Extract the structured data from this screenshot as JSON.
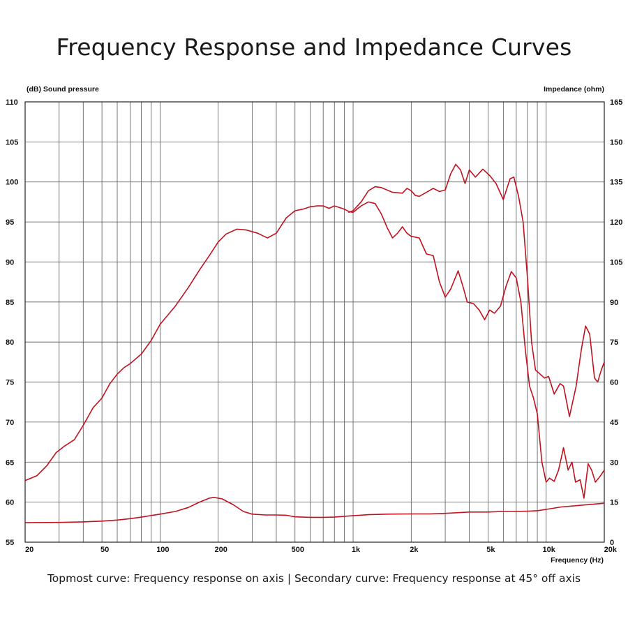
{
  "title": "Frequency Response and Impedance Curves",
  "caption": "Topmost curve: Frequency response on axis | Secondary curve: Frequency response at 45° off axis",
  "chart_data": {
    "type": "line",
    "x_scale": "log",
    "xlim": [
      20,
      20000
    ],
    "ylim": [
      55,
      110
    ],
    "y2lim": [
      0,
      165
    ],
    "grid": true,
    "left_axis_label": "(dB)  Sound pressure",
    "right_axis_label": "Impedance  (ohm)",
    "x_axis_label": "Frequency  (Hz)",
    "x_tick_labels": [
      {
        "v": 20,
        "t": "20"
      },
      {
        "v": 50,
        "t": "50"
      },
      {
        "v": 100,
        "t": "100"
      },
      {
        "v": 200,
        "t": "200"
      },
      {
        "v": 500,
        "t": "500"
      },
      {
        "v": 1000,
        "t": "1k"
      },
      {
        "v": 2000,
        "t": "2k"
      },
      {
        "v": 5000,
        "t": "5k"
      },
      {
        "v": 10000,
        "t": "10k"
      },
      {
        "v": 20000,
        "t": "20k"
      }
    ],
    "x_gridlines": [
      30,
      40,
      50,
      60,
      70,
      80,
      90,
      100,
      200,
      300,
      400,
      500,
      600,
      700,
      800,
      900,
      1000,
      2000,
      3000,
      4000,
      5000,
      6000,
      7000,
      8000,
      9000,
      10000
    ],
    "y_ticks": [
      55,
      60,
      65,
      70,
      75,
      80,
      85,
      90,
      95,
      100,
      105,
      110
    ],
    "y2_ticks": [
      0,
      15,
      30,
      45,
      60,
      75,
      90,
      105,
      120,
      135,
      150,
      165
    ],
    "line_color": "#c0121f",
    "series": [
      {
        "axis": "left",
        "points": [
          [
            20,
            62.7
          ],
          [
            23,
            63.3
          ],
          [
            26,
            64.6
          ],
          [
            29,
            66.2
          ],
          [
            32,
            67.0
          ],
          [
            36,
            67.8
          ],
          [
            40,
            69.6
          ],
          [
            45,
            71.8
          ],
          [
            50,
            73.0
          ],
          [
            55,
            74.8
          ],
          [
            60,
            76.0
          ],
          [
            65,
            76.8
          ],
          [
            70,
            77.3
          ],
          [
            80,
            78.5
          ],
          [
            90,
            80.2
          ],
          [
            100,
            82.2
          ],
          [
            120,
            84.5
          ],
          [
            140,
            86.8
          ],
          [
            160,
            89.0
          ],
          [
            180,
            90.8
          ],
          [
            200,
            92.5
          ],
          [
            220,
            93.5
          ],
          [
            250,
            94.1
          ],
          [
            280,
            94.0
          ],
          [
            320,
            93.6
          ],
          [
            360,
            93.0
          ],
          [
            400,
            93.6
          ],
          [
            450,
            95.5
          ],
          [
            500,
            96.4
          ],
          [
            550,
            96.6
          ],
          [
            600,
            96.9
          ],
          [
            650,
            97.0
          ],
          [
            700,
            97.0
          ],
          [
            750,
            96.7
          ],
          [
            800,
            97.0
          ],
          [
            850,
            96.8
          ],
          [
            900,
            96.6
          ],
          [
            950,
            96.3
          ],
          [
            1000,
            96.2
          ],
          [
            1100,
            97.0
          ],
          [
            1200,
            97.5
          ],
          [
            1300,
            97.3
          ],
          [
            1400,
            96.0
          ],
          [
            1500,
            94.3
          ],
          [
            1600,
            93.0
          ],
          [
            1700,
            93.6
          ],
          [
            1800,
            94.4
          ],
          [
            1900,
            93.6
          ],
          [
            2000,
            93.2
          ],
          [
            2200,
            93.0
          ],
          [
            2400,
            91.0
          ],
          [
            2600,
            90.8
          ],
          [
            2800,
            87.5
          ],
          [
            3000,
            85.6
          ],
          [
            3200,
            86.6
          ],
          [
            3500,
            88.9
          ],
          [
            3700,
            87.0
          ],
          [
            3900,
            85.0
          ],
          [
            4200,
            84.8
          ],
          [
            4500,
            84.0
          ],
          [
            4800,
            82.8
          ],
          [
            5100,
            84.0
          ],
          [
            5400,
            83.6
          ],
          [
            5800,
            84.5
          ],
          [
            6200,
            87.0
          ],
          [
            6600,
            88.8
          ],
          [
            7000,
            88.0
          ],
          [
            7400,
            85.0
          ],
          [
            7800,
            79.0
          ],
          [
            8200,
            74.5
          ],
          [
            8600,
            73.0
          ],
          [
            9000,
            71.0
          ],
          [
            9500,
            65.0
          ],
          [
            10000,
            62.5
          ],
          [
            10400,
            63.0
          ],
          [
            11000,
            62.6
          ],
          [
            11600,
            64.0
          ],
          [
            12300,
            66.8
          ],
          [
            13000,
            64.0
          ],
          [
            13600,
            65.0
          ],
          [
            14200,
            62.5
          ],
          [
            15000,
            62.8
          ],
          [
            15700,
            60.5
          ],
          [
            16500,
            64.8
          ],
          [
            17200,
            64.0
          ],
          [
            18000,
            62.5
          ],
          [
            19000,
            63.2
          ],
          [
            20000,
            64.0
          ]
        ]
      },
      {
        "axis": "left",
        "points": [
          [
            950,
            96.2
          ],
          [
            1000,
            96.4
          ],
          [
            1100,
            97.5
          ],
          [
            1200,
            98.9
          ],
          [
            1300,
            99.4
          ],
          [
            1400,
            99.3
          ],
          [
            1600,
            98.7
          ],
          [
            1800,
            98.6
          ],
          [
            1900,
            99.2
          ],
          [
            2000,
            98.9
          ],
          [
            2100,
            98.3
          ],
          [
            2200,
            98.2
          ],
          [
            2400,
            98.7
          ],
          [
            2600,
            99.2
          ],
          [
            2800,
            98.8
          ],
          [
            3000,
            99.0
          ],
          [
            3200,
            101.0
          ],
          [
            3400,
            102.2
          ],
          [
            3600,
            101.5
          ],
          [
            3800,
            99.8
          ],
          [
            4000,
            101.5
          ],
          [
            4300,
            100.6
          ],
          [
            4700,
            101.6
          ],
          [
            5100,
            100.8
          ],
          [
            5500,
            99.8
          ],
          [
            6000,
            97.8
          ],
          [
            6500,
            100.4
          ],
          [
            6800,
            100.6
          ],
          [
            7200,
            98.2
          ],
          [
            7600,
            95.0
          ],
          [
            8000,
            88.0
          ],
          [
            8400,
            80.0
          ],
          [
            8800,
            76.5
          ],
          [
            9300,
            76.0
          ],
          [
            9800,
            75.5
          ],
          [
            10300,
            75.7
          ],
          [
            11000,
            73.5
          ],
          [
            11800,
            74.8
          ],
          [
            12300,
            74.5
          ],
          [
            13200,
            70.7
          ],
          [
            14300,
            74.5
          ],
          [
            15200,
            79.0
          ],
          [
            16000,
            82.0
          ],
          [
            16800,
            81.0
          ],
          [
            17800,
            75.5
          ],
          [
            18500,
            75.0
          ],
          [
            19300,
            76.5
          ],
          [
            20000,
            77.5
          ]
        ]
      },
      {
        "axis": "right",
        "points": [
          [
            20,
            7.3
          ],
          [
            30,
            7.4
          ],
          [
            40,
            7.6
          ],
          [
            50,
            7.9
          ],
          [
            60,
            8.3
          ],
          [
            70,
            8.8
          ],
          [
            80,
            9.4
          ],
          [
            90,
            10.0
          ],
          [
            100,
            10.5
          ],
          [
            120,
            11.5
          ],
          [
            140,
            13.0
          ],
          [
            160,
            15.0
          ],
          [
            180,
            16.5
          ],
          [
            190,
            16.8
          ],
          [
            210,
            16.2
          ],
          [
            240,
            14.0
          ],
          [
            270,
            11.5
          ],
          [
            300,
            10.5
          ],
          [
            350,
            10.2
          ],
          [
            400,
            10.2
          ],
          [
            450,
            10.1
          ],
          [
            500,
            9.5
          ],
          [
            600,
            9.3
          ],
          [
            700,
            9.3
          ],
          [
            800,
            9.4
          ],
          [
            900,
            9.7
          ],
          [
            1000,
            9.9
          ],
          [
            1200,
            10.3
          ],
          [
            1500,
            10.5
          ],
          [
            2000,
            10.6
          ],
          [
            2500,
            10.6
          ],
          [
            3000,
            10.8
          ],
          [
            4000,
            11.3
          ],
          [
            5000,
            11.3
          ],
          [
            6000,
            11.5
          ],
          [
            7000,
            11.5
          ],
          [
            8000,
            11.6
          ],
          [
            9000,
            11.8
          ],
          [
            10000,
            12.3
          ],
          [
            12000,
            13.2
          ],
          [
            15000,
            13.8
          ],
          [
            18000,
            14.3
          ],
          [
            20000,
            14.6
          ]
        ]
      }
    ]
  }
}
